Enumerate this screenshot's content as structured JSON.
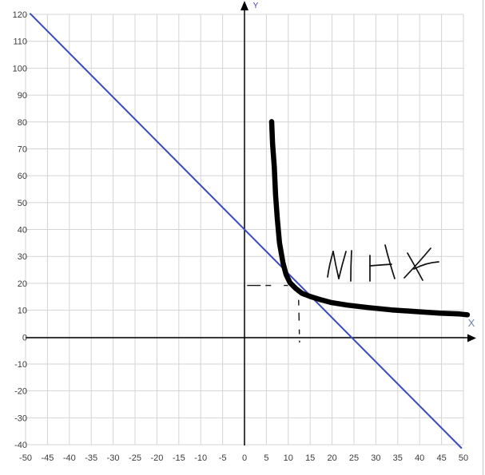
{
  "chart_data": {
    "type": "line",
    "title": "",
    "xlabel": "X",
    "ylabel": "Y",
    "xlim": [
      -50,
      50
    ],
    "ylim": [
      -40,
      120
    ],
    "grid": true,
    "legend": false,
    "x_ticks": [
      -50,
      -45,
      -40,
      -35,
      -30,
      -25,
      -20,
      -15,
      -10,
      -5,
      0,
      5,
      10,
      15,
      20,
      25,
      30,
      35,
      40,
      45,
      50
    ],
    "y_ticks": [
      -40,
      -30,
      -20,
      -10,
      0,
      10,
      20,
      30,
      40,
      50,
      60,
      70,
      80,
      90,
      100,
      110,
      120
    ],
    "series": [
      {
        "name": "decreasing-line",
        "type": "line",
        "color": "#3a4abf",
        "width": 2,
        "points": [
          [
            -48.9,
            120.2
          ],
          [
            49.5,
            -41.2
          ]
        ]
      },
      {
        "name": "hyperbola-curve",
        "type": "freehand",
        "color": "#000000",
        "width": 6.5,
        "points": [
          [
            6.2,
            80.1
          ],
          [
            6.4,
            72.1
          ],
          [
            6.8,
            63.2
          ],
          [
            7.1,
            52.8
          ],
          [
            7.5,
            43.9
          ],
          [
            8.0,
            35.0
          ],
          [
            8.8,
            27.6
          ],
          [
            9.5,
            23.2
          ],
          [
            10.4,
            20.2
          ],
          [
            11.7,
            18.1
          ],
          [
            13.1,
            16.3
          ],
          [
            15.0,
            15.1
          ],
          [
            17.2,
            14.0
          ],
          [
            19.9,
            12.8
          ],
          [
            23.5,
            11.9
          ],
          [
            28.1,
            11.0
          ],
          [
            33.6,
            10.1
          ],
          [
            39.1,
            9.5
          ],
          [
            44.5,
            8.9
          ],
          [
            49.1,
            8.6
          ],
          [
            50.9,
            8.3
          ]
        ]
      }
    ],
    "annotations": {
      "max_label": {
        "text": "MAX",
        "style": "handwritten",
        "near": {
          "x": 30,
          "y": 27
        }
      },
      "dashed_horizontal_guide": {
        "y": 19.2,
        "from_x": 0.6,
        "to_x": 10.0
      },
      "dotted_vertical_guide": {
        "x": 12.3,
        "from_y": 18.3,
        "to_y": -2.0
      },
      "tangent_point": {
        "x": 12.3,
        "y": 19.2
      }
    }
  },
  "colors": {
    "background": "#ffffff",
    "grid": "#d4d4d4",
    "axis": "#000000",
    "tick_text": "#3b3b3b",
    "xlabel_text": "#6b85a8",
    "ylabel_text": "#3c3cd6",
    "line": "#3a4abf",
    "curve": "#000000",
    "guide": "#161616",
    "handwriting": "#111111",
    "canvas_border": "#c8c8c8"
  }
}
